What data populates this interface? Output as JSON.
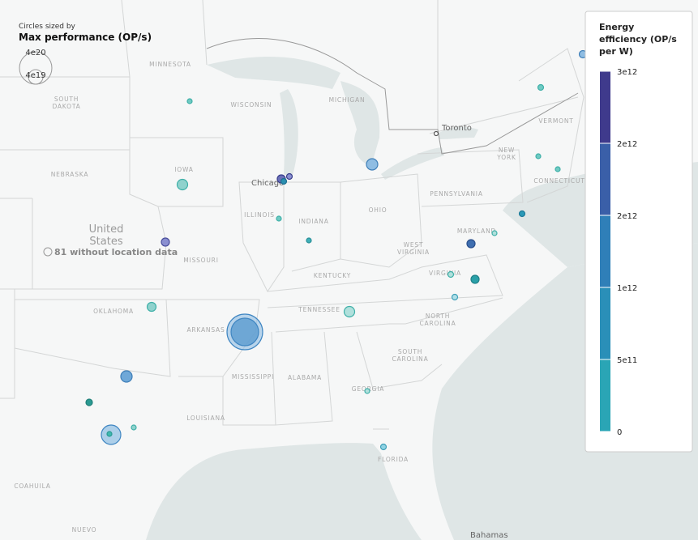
{
  "map": {
    "places": [
      "MINNESOTA",
      "SOUTH",
      "DAKOTA",
      "WISCONSIN",
      "MICHIGAN",
      "NEBRASKA",
      "IOWA",
      "ILLINOIS",
      "INDIANA",
      "OHIO",
      "PENNSYLVANIA",
      "NEW",
      "YORK",
      "VERMONT",
      "MISSOURI",
      "KENTUCKY",
      "WEST",
      "VIRGINIA",
      "VIRGINIA",
      "MARYLAND",
      "OKLAHOMA",
      "ARKANSAS",
      "TENNESSEE",
      "NORTH",
      "CAROLINA",
      "SOUTH",
      "CAROLINA",
      "MISSISSIPPI",
      "ALABAMA",
      "GEORGIA",
      "LOUISIANA",
      "FLORIDA",
      "COAHUILA",
      "NUEVO",
      "CONNECTICUT"
    ],
    "cities": [
      "Chicago",
      "Toronto",
      "Bahamas"
    ],
    "country": [
      "United",
      "States"
    ],
    "no_location": "81 without location data"
  },
  "size_legend": {
    "caption": "Circles sized by",
    "title": "Max performance (OP/s)",
    "labels": [
      "4e20",
      "4e19"
    ]
  },
  "color_legend": {
    "title": [
      "Energy",
      "efficiency (OP/s",
      "per W)"
    ],
    "labels": [
      "3e12",
      "2e12",
      "2e12",
      "1e12",
      "5e11",
      "0"
    ]
  }
}
